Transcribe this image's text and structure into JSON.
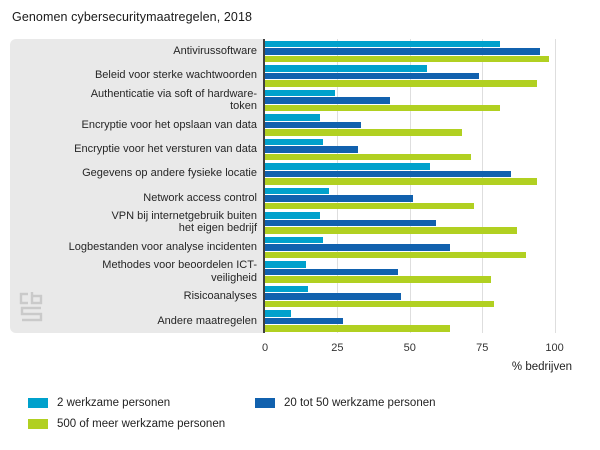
{
  "chart_data": {
    "type": "bar",
    "orientation": "horizontal",
    "title": "Genomen cybersecuritymaatregelen, 2018",
    "xlabel": "% bedrijven",
    "xticks": [
      0,
      25,
      50,
      75,
      100
    ],
    "xlim": [
      0,
      100
    ],
    "x_axis_extent": 106,
    "grid": true,
    "legend_position": "bottom-left",
    "panel_color": "#e9e9e9",
    "axis_color": "#404040",
    "gridline_color": "#dedede",
    "categories": [
      "Antivirussoftware",
      "Beleid voor sterke wachtwoorden",
      "Authenticatie via soft of hardware-\ntoken",
      "Encryptie voor het opslaan van data",
      "Encryptie voor het versturen van data",
      "Gegevens op andere fysieke locatie",
      "Network access control",
      "VPN bij internetgebruik buiten\nhet eigen bedrijf",
      "Logbestanden voor analyse incidenten",
      "Methodes voor beoordelen ICT-\nveiligheid",
      "Risicoanalyses",
      "Andere maatregelen"
    ],
    "series": [
      {
        "id": "2-personen",
        "name": "2 werkzame personen",
        "color": "#00a1cc",
        "values": [
          81,
          56,
          24,
          19,
          20,
          57,
          22,
          19,
          20,
          14,
          15,
          9
        ]
      },
      {
        "id": "20-50-personen",
        "name": "20 tot 50 werkzame personen",
        "color": "#1161ae",
        "values": [
          95,
          74,
          43,
          33,
          32,
          85,
          51,
          59,
          64,
          46,
          47,
          27
        ]
      },
      {
        "id": "500-plus-personen",
        "name": "500 of meer werkzame personen",
        "color": "#b1d021",
        "values": [
          98,
          94,
          81,
          68,
          71,
          94,
          72,
          87,
          90,
          78,
          79,
          64
        ]
      }
    ]
  },
  "branding": {
    "logo": "cbs-logo"
  }
}
